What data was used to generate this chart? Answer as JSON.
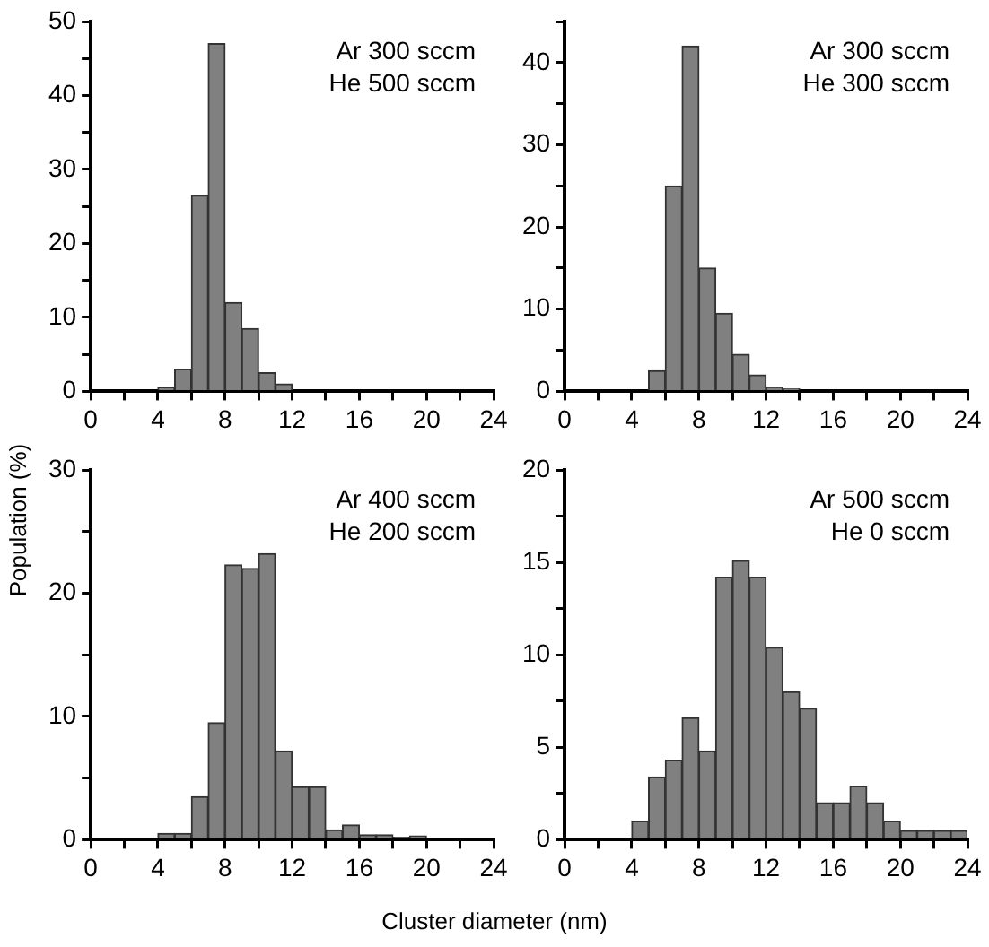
{
  "chart_data": [
    {
      "type": "histogram",
      "color": "#808080",
      "bins": [
        4,
        5,
        6,
        7,
        8,
        9,
        10,
        11,
        12
      ],
      "values": [
        0.5,
        3,
        26.5,
        47,
        12,
        8.5,
        2.5,
        1
      ],
      "xlim": [
        0,
        24
      ],
      "ylim": [
        0,
        50
      ],
      "xticks": [
        0,
        {
          "value": 2,
          "label": null
        },
        4,
        {
          "value": 6,
          "label": null
        },
        8,
        {
          "value": 10,
          "label": null
        },
        12,
        {
          "value": 14,
          "label": null
        },
        16,
        {
          "value": 18,
          "label": null
        },
        20,
        {
          "value": 22,
          "label": null
        },
        24
      ],
      "yticks": [
        0,
        {
          "value": 5,
          "label": null
        },
        10,
        {
          "value": 15,
          "label": null
        },
        20,
        {
          "value": 25,
          "label": null
        },
        30,
        {
          "value": 35,
          "label": null
        },
        40,
        {
          "value": 45,
          "label": null
        },
        50
      ],
      "annotations": [
        "Ar 300 sccm",
        "He 500 sccm"
      ],
      "grid": false,
      "legend": false
    },
    {
      "type": "histogram",
      "color": "#808080",
      "bins": [
        5,
        6,
        7,
        8,
        9,
        10,
        11,
        12,
        13,
        14
      ],
      "values": [
        2.5,
        25,
        42,
        15,
        9.5,
        4.5,
        2,
        0.5,
        0.3
      ],
      "xlim": [
        0,
        24
      ],
      "ylim": [
        0,
        45
      ],
      "xticks": [
        0,
        {
          "value": 2,
          "label": null
        },
        4,
        {
          "value": 6,
          "label": null
        },
        8,
        {
          "value": 10,
          "label": null
        },
        12,
        {
          "value": 14,
          "label": null
        },
        16,
        {
          "value": 18,
          "label": null
        },
        20,
        {
          "value": 22,
          "label": null
        },
        24
      ],
      "yticks": [
        0,
        {
          "value": 5,
          "label": null
        },
        10,
        {
          "value": 15,
          "label": null
        },
        20,
        {
          "value": 25,
          "label": null
        },
        30,
        {
          "value": 35,
          "label": null
        },
        40,
        {
          "value": 45,
          "label": null
        }
      ],
      "annotations": [
        "Ar 300 sccm",
        "He 300 sccm"
      ],
      "grid": false,
      "legend": false
    },
    {
      "type": "histogram",
      "color": "#808080",
      "bins": [
        4,
        5,
        6,
        7,
        8,
        9,
        10,
        11,
        12,
        13,
        14,
        15,
        16,
        17,
        18,
        19,
        20
      ],
      "values": [
        0.5,
        0.5,
        3.5,
        9.5,
        22.3,
        22,
        23.2,
        7.2,
        4.3,
        4.3,
        0.8,
        1.2,
        0.4,
        0.4,
        0.2,
        0.3
      ],
      "xlim": [
        0,
        24
      ],
      "ylim": [
        0,
        30
      ],
      "xticks": [
        0,
        {
          "value": 2,
          "label": null
        },
        4,
        {
          "value": 6,
          "label": null
        },
        8,
        {
          "value": 10,
          "label": null
        },
        12,
        {
          "value": 14,
          "label": null
        },
        16,
        {
          "value": 18,
          "label": null
        },
        20,
        {
          "value": 22,
          "label": null
        },
        24
      ],
      "yticks": [
        0,
        {
          "value": 5,
          "label": null
        },
        10,
        {
          "value": 15,
          "label": null
        },
        20,
        {
          "value": 25,
          "label": null
        },
        30
      ],
      "ylabel": "Population (%)",
      "annotations": [
        "Ar 400 sccm",
        "He 200 sccm"
      ],
      "grid": false,
      "legend": false
    },
    {
      "type": "histogram",
      "color": "#808080",
      "bins": [
        4,
        5,
        6,
        7,
        8,
        9,
        10,
        11,
        12,
        13,
        14,
        15,
        16,
        17,
        18,
        19,
        20,
        21,
        22,
        23,
        24
      ],
      "values": [
        1,
        3.4,
        4.3,
        6.6,
        4.8,
        14.2,
        15.1,
        14.2,
        10.4,
        8,
        7.1,
        2,
        2,
        2.9,
        2,
        1,
        0.5,
        0.5,
        0.5,
        0.5
      ],
      "xlim": [
        0,
        24
      ],
      "ylim": [
        0,
        20
      ],
      "xticks": [
        0,
        {
          "value": 2,
          "label": null
        },
        4,
        {
          "value": 6,
          "label": null
        },
        8,
        {
          "value": 10,
          "label": null
        },
        12,
        {
          "value": 14,
          "label": null
        },
        16,
        {
          "value": 18,
          "label": null
        },
        20,
        {
          "value": 22,
          "label": null
        },
        24
      ],
      "yticks": [
        0,
        {
          "value": 2.5,
          "label": null
        },
        5,
        {
          "value": 7.5,
          "label": null
        },
        10,
        {
          "value": 12.5,
          "label": null
        },
        15,
        {
          "value": 17.5,
          "label": null
        },
        20
      ],
      "xlabel": "Cluster diameter (nm)",
      "annotations": [
        "Ar 500 sccm",
        "He 0 sccm"
      ],
      "grid": false,
      "legend": false
    }
  ]
}
